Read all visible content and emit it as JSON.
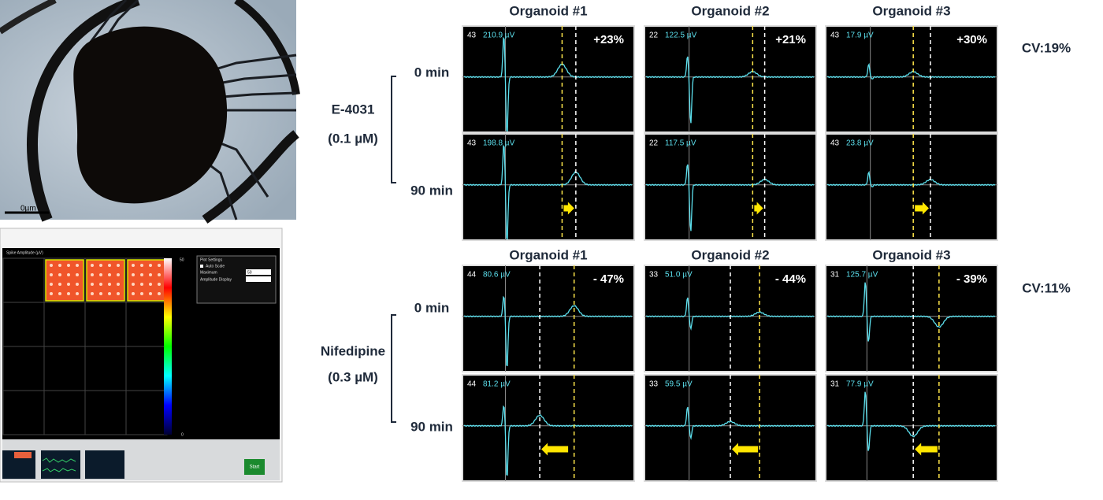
{
  "microscope": {
    "scale_label": "0µm"
  },
  "software": {
    "title": "Spike Amplitude (µV)",
    "plot_settings": "Plot Settings",
    "auto_scale": "Auto Scale",
    "maximum_label": "Maximum",
    "maximum_value": "50",
    "amplitude_display_label": "Amplitude Display",
    "scale_max": "50",
    "scale_min": "0",
    "button": "Start"
  },
  "experiments": [
    {
      "drug": "E-4031",
      "dose": "(0.1 µM)",
      "times": [
        "0 min",
        "90 min"
      ],
      "cv": "CV:19%",
      "organoids": [
        {
          "title": "Organoid #1",
          "change": "+23%",
          "traces": [
            {
              "channel": "43",
              "amplitude": "210.9 µV"
            },
            {
              "channel": "43",
              "amplitude": "198.8 µV"
            }
          ]
        },
        {
          "title": "Organoid #2",
          "change": "+21%",
          "traces": [
            {
              "channel": "22",
              "amplitude": "122.5 µV"
            },
            {
              "channel": "22",
              "amplitude": "117.5 µV"
            }
          ]
        },
        {
          "title": "Organoid #3",
          "change": "+30%",
          "traces": [
            {
              "channel": "43",
              "amplitude": "17.9 µV"
            },
            {
              "channel": "43",
              "amplitude": "23.8 µV"
            }
          ]
        }
      ]
    },
    {
      "drug": "Nifedipine",
      "dose": "(0.3 µM)",
      "times": [
        "0 min",
        "90 min"
      ],
      "cv": "CV:11%",
      "organoids": [
        {
          "title": "Organoid #1",
          "change": "- 47%",
          "traces": [
            {
              "channel": "44",
              "amplitude": "80.6 µV"
            },
            {
              "channel": "44",
              "amplitude": "81.2 µV"
            }
          ]
        },
        {
          "title": "Organoid #2",
          "change": "- 44%",
          "traces": [
            {
              "channel": "33",
              "amplitude": "51.0 µV"
            },
            {
              "channel": "33",
              "amplitude": "59.5 µV"
            }
          ]
        },
        {
          "title": "Organoid #3",
          "change": "- 39%",
          "traces": [
            {
              "channel": "31",
              "amplitude": "125.7 µV"
            },
            {
              "channel": "31",
              "amplitude": "77.9 µV"
            }
          ]
        }
      ]
    }
  ]
}
